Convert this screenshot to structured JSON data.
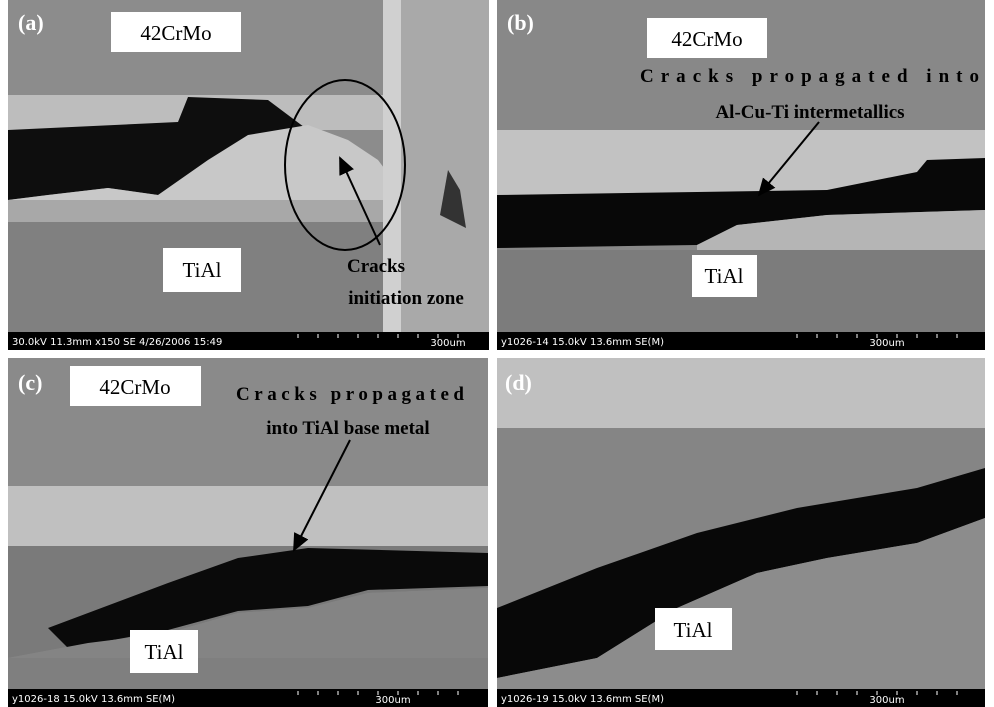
{
  "panels": [
    {
      "label": "(a)",
      "material_top": "42CrMo",
      "material_bottom": "TiAl",
      "note_lines": [
        "Cracks",
        "initiation zone"
      ],
      "footer": {
        "info": "30.0kV 11.3mm x150 SE  4/26/2006 15:49",
        "scale": "300um"
      }
    },
    {
      "label": "(b)",
      "material_top": "42CrMo",
      "material_bottom": "TiAl",
      "note_lines": [
        "Cracks propagated into",
        "Al-Cu-Ti intermetallics"
      ],
      "footer": {
        "info": "y1026-14 15.0kV 13.6mm SE(M)",
        "scale": "300um"
      }
    },
    {
      "label": "(c)",
      "material_top": "42CrMo",
      "material_bottom": "TiAl",
      "note_lines": [
        "Cracks propagated",
        "into TiAl base metal"
      ],
      "footer": {
        "info": "y1026-18 15.0kV 13.6mm SE(M)",
        "scale": "300um"
      }
    },
    {
      "label": "(d)",
      "material_bottom": "TiAl",
      "footer": {
        "info": "y1026-19 15.0kV 13.6mm SE(M)",
        "scale": "300um"
      }
    }
  ]
}
